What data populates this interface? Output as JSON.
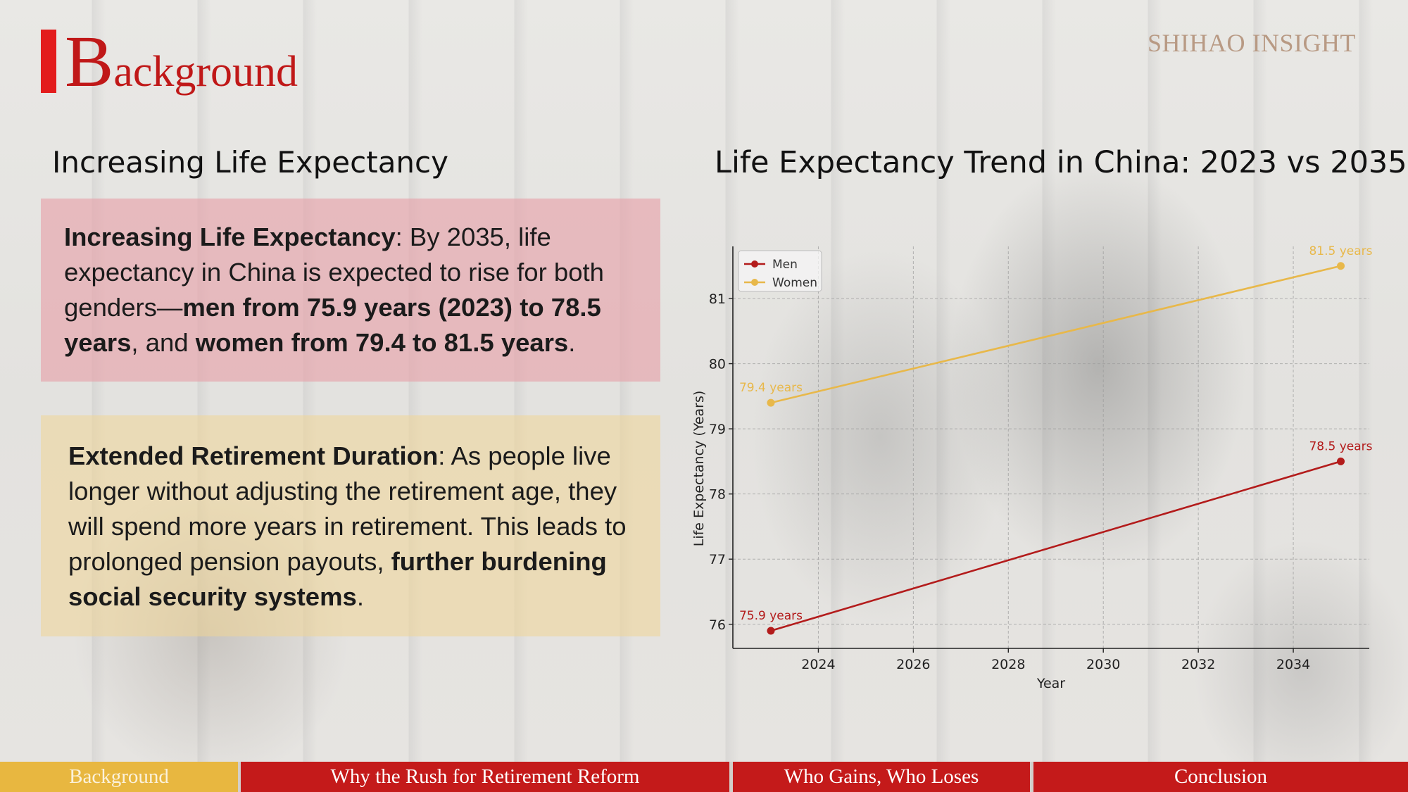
{
  "header": {
    "title_first_letter": "B",
    "title_rest": "ackground",
    "logo": "SHIHAO INSIGHT"
  },
  "section_heading": "Increasing Life Expectancy",
  "card1": {
    "bold1": "Increasing Life Expectancy",
    "text1": ": By 2035, life expectancy in China is expected to rise for both genders—",
    "bold2": "men from 75.9 years (2023) to 78.5 years",
    "text2": ", and ",
    "bold3": "women from 79.4 to 81.5 years",
    "text3": "."
  },
  "card2": {
    "bold1": "Extended Retirement Duration",
    "text1": ": As people live longer without adjusting the retirement age, they will spend more years in retirement. This leads to prolonged pension payouts, ",
    "bold2": "further burdening social security systems",
    "text2": "."
  },
  "chart_heading": "Life Expectancy Trend in China: 2023 vs 2035",
  "chart_data": {
    "type": "line",
    "title": "Life Expectancy Trend in China: 2023 vs 2035",
    "xlabel": "Year",
    "ylabel": "Life Expectancy (Years)",
    "xlim": [
      2022.2,
      2035.6
    ],
    "ylim": [
      75.63,
      81.8
    ],
    "xticks": [
      2024,
      2026,
      2028,
      2030,
      2032,
      2034
    ],
    "yticks": [
      76,
      77,
      78,
      79,
      80,
      81
    ],
    "grid": true,
    "legend_position": "top-left",
    "series": [
      {
        "name": "Men",
        "color": "#b31b1b",
        "x": [
          2023,
          2035
        ],
        "values": [
          75.9,
          78.5
        ],
        "labels": [
          "75.9 years",
          "78.5 years"
        ]
      },
      {
        "name": "Women",
        "color": "#e8b84a",
        "x": [
          2023,
          2035
        ],
        "values": [
          79.4,
          81.5
        ],
        "labels": [
          "79.4 years",
          "81.5 years"
        ]
      }
    ]
  },
  "nav": {
    "items": [
      {
        "label": "Background",
        "active": true
      },
      {
        "label": "Why the Rush for Retirement Reform",
        "active": false
      },
      {
        "label": "Who Gains, Who Loses",
        "active": false
      },
      {
        "label": "Conclusion",
        "active": false
      }
    ]
  }
}
